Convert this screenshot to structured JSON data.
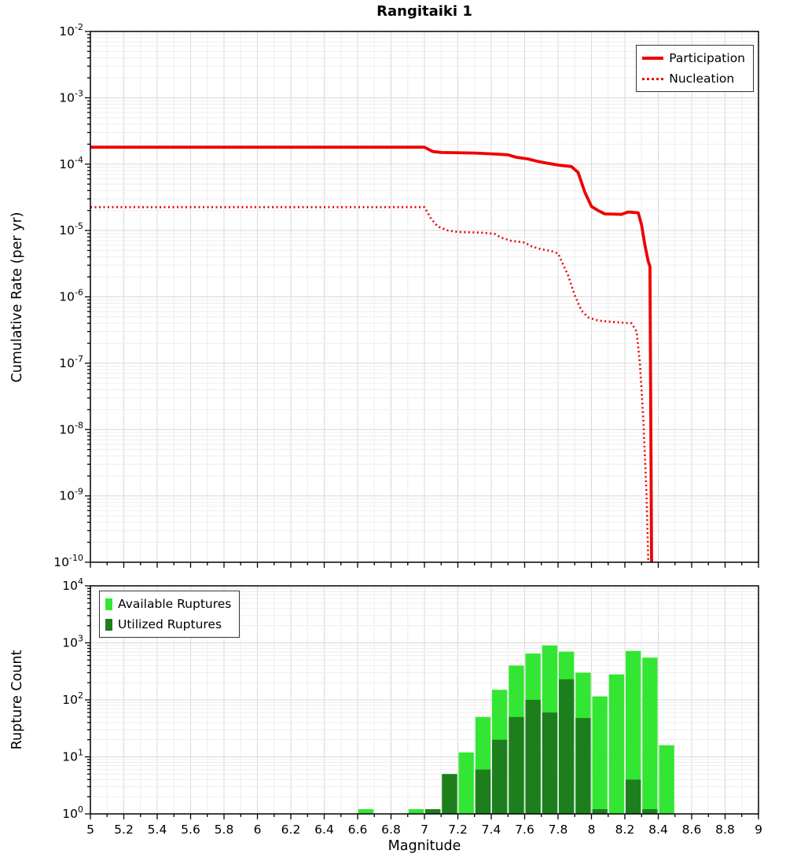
{
  "title": "Rangitaiki 1",
  "chart_data": [
    {
      "type": "line",
      "title": "Rangitaiki 1",
      "xlabel": "",
      "ylabel": "Cumulative Rate (per yr)",
      "xlim": [
        5,
        9
      ],
      "ylim": [
        1e-10,
        0.01
      ],
      "y_tick_exponents": [
        -2,
        -3,
        -4,
        -5,
        -6,
        -7,
        -8,
        -9,
        -10
      ],
      "grid": true,
      "legend_position": "top-right",
      "series": [
        {
          "name": "Participation",
          "style": "solid",
          "color": "#ee0000",
          "points": [
            [
              5.0,
              0.00018
            ],
            [
              7.0,
              0.00018
            ],
            [
              7.05,
              0.000155
            ],
            [
              7.1,
              0.00015
            ],
            [
              7.3,
              0.000147
            ],
            [
              7.4,
              0.000143
            ],
            [
              7.5,
              0.000138
            ],
            [
              7.55,
              0.000127
            ],
            [
              7.62,
              0.00012
            ],
            [
              7.68,
              0.00011
            ],
            [
              7.72,
              0.000105
            ],
            [
              7.8,
              9.7e-05
            ],
            [
              7.88,
              9.2e-05
            ],
            [
              7.92,
              7.5e-05
            ],
            [
              7.96,
              3.8e-05
            ],
            [
              8.0,
              2.3e-05
            ],
            [
              8.04,
              2e-05
            ],
            [
              8.08,
              1.78e-05
            ],
            [
              8.18,
              1.75e-05
            ],
            [
              8.22,
              1.9e-05
            ],
            [
              8.28,
              1.85e-05
            ],
            [
              8.3,
              1.2e-05
            ],
            [
              8.32,
              6e-06
            ],
            [
              8.34,
              3.4e-06
            ],
            [
              8.35,
              2.9e-06
            ],
            [
              8.36,
              1e-10
            ]
          ]
        },
        {
          "name": "Nucleation",
          "style": "dotted",
          "color": "#ee0000",
          "points": [
            [
              5.0,
              2.25e-05
            ],
            [
              7.0,
              2.25e-05
            ],
            [
              7.04,
              1.5e-05
            ],
            [
              7.08,
              1.15e-05
            ],
            [
              7.14,
              1e-05
            ],
            [
              7.2,
              9.5e-06
            ],
            [
              7.34,
              9.3e-06
            ],
            [
              7.42,
              8.9e-06
            ],
            [
              7.46,
              7.8e-06
            ],
            [
              7.52,
              7e-06
            ],
            [
              7.6,
              6.6e-06
            ],
            [
              7.64,
              5.8e-06
            ],
            [
              7.7,
              5.2e-06
            ],
            [
              7.76,
              4.9e-06
            ],
            [
              7.8,
              4.5e-06
            ],
            [
              7.86,
              2.1e-06
            ],
            [
              7.9,
              1.05e-06
            ],
            [
              7.94,
              6.2e-07
            ],
            [
              7.98,
              4.9e-07
            ],
            [
              8.04,
              4.4e-07
            ],
            [
              8.12,
              4.2e-07
            ],
            [
              8.24,
              4e-07
            ],
            [
              8.27,
              3e-07
            ],
            [
              8.29,
              1e-07
            ],
            [
              8.31,
              1.5e-08
            ],
            [
              8.33,
              1e-09
            ],
            [
              8.34,
              1e-10
            ]
          ]
        }
      ]
    },
    {
      "type": "bar",
      "title": "",
      "xlabel": "Magnitude",
      "ylabel": "Rupture Count",
      "xlim": [
        5,
        9
      ],
      "ylim": [
        1,
        10000
      ],
      "y_tick_exponents": [
        0,
        1,
        2,
        3,
        4
      ],
      "x_tick_labels": [
        "5",
        "5.2",
        "5.4",
        "5.6",
        "5.8",
        "6",
        "6.2",
        "6.4",
        "6.6",
        "6.8",
        "7",
        "7.2",
        "7.4",
        "7.6",
        "7.8",
        "8",
        "8.2",
        "8.4",
        "8.6",
        "8.8",
        "9"
      ],
      "bin_width": 0.1,
      "grid": true,
      "legend_position": "top-left",
      "series": [
        {
          "name": "Available Ruptures",
          "color": "#33e633",
          "centers": [
            6.65,
            6.95,
            7.05,
            7.15,
            7.25,
            7.35,
            7.45,
            7.55,
            7.65,
            7.75,
            7.85,
            7.95,
            8.05,
            8.15,
            8.25,
            8.35,
            8.45
          ],
          "values": [
            1,
            1,
            1,
            5,
            12,
            50,
            150,
            400,
            650,
            900,
            700,
            300,
            115,
            280,
            720,
            550,
            16
          ]
        },
        {
          "name": "Utilized Ruptures",
          "color": "#1c7f1c",
          "centers": [
            6.65,
            6.95,
            7.05,
            7.15,
            7.25,
            7.35,
            7.45,
            7.55,
            7.65,
            7.75,
            7.85,
            7.95,
            8.05,
            8.15,
            8.25,
            8.35,
            8.45
          ],
          "values": [
            0,
            0,
            1,
            5,
            0,
            6,
            20,
            50,
            100,
            60,
            230,
            48,
            1,
            0,
            4,
            1,
            0
          ]
        }
      ]
    }
  ]
}
